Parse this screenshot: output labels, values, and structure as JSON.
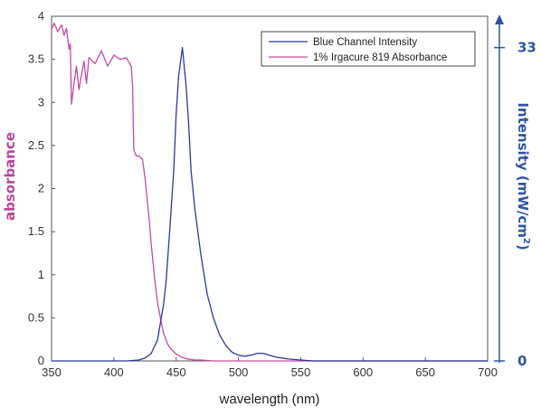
{
  "chart_data": {
    "type": "line",
    "xlabel": "wavelength (nm)",
    "ylabel_left": "absorbance",
    "ylabel_right_parts": [
      "Intensity (mW/cm",
      "2",
      ")"
    ],
    "xlim": [
      350,
      700
    ],
    "x_ticks": [
      "350",
      "400",
      "450",
      "500",
      "550",
      "600",
      "650",
      "700"
    ],
    "ylim_left": [
      0,
      4
    ],
    "y_ticks_left": [
      "0",
      "0.5",
      "1",
      "1.5",
      "2",
      "2.5",
      "3",
      "3.5",
      "4"
    ],
    "ylim_right": [
      0,
      36.3
    ],
    "y_ticks_right": [
      "0",
      "33"
    ],
    "grid": false,
    "legend_position": "top-right",
    "colors": {
      "intensity": "#2b3a9c",
      "absorbance": "#c647a6",
      "right_axis": "#2d55a5",
      "left_label": "#b8459c"
    },
    "series": [
      {
        "name": "Blue Channel Intensity",
        "axis": "right",
        "x": [
          350,
          400,
          410,
          420,
          425,
          430,
          435,
          440,
          442,
          445,
          448,
          450,
          452,
          455,
          458,
          460,
          462,
          465,
          468,
          470,
          475,
          480,
          485,
          490,
          495,
          500,
          505,
          510,
          515,
          520,
          525,
          530,
          540,
          550,
          560,
          600,
          650,
          700
        ],
        "y": [
          0,
          0,
          0,
          0.1,
          0.3,
          0.8,
          2.2,
          6,
          8.5,
          14,
          20,
          26,
          30,
          33,
          29,
          25,
          20,
          16,
          13,
          11,
          7,
          4.5,
          2.7,
          1.6,
          0.9,
          0.6,
          0.5,
          0.6,
          0.8,
          0.8,
          0.6,
          0.4,
          0.2,
          0.1,
          0,
          0,
          0,
          0
        ]
      },
      {
        "name": "1% Irgacure 819 Absorbance",
        "axis": "left",
        "x": [
          350,
          352,
          355,
          358,
          360,
          362,
          364,
          365,
          366,
          368,
          370,
          372,
          374,
          376,
          378,
          380,
          385,
          390,
          395,
          400,
          405,
          410,
          414,
          415,
          416,
          418,
          420,
          423,
          425,
          428,
          430,
          433,
          435,
          438,
          440,
          443,
          445,
          450,
          455,
          460,
          465,
          470,
          480,
          500,
          550,
          600,
          650,
          700
        ],
        "y": [
          3.85,
          3.92,
          3.82,
          3.9,
          3.78,
          3.86,
          3.62,
          3.68,
          2.98,
          3.22,
          3.42,
          3.15,
          3.32,
          3.48,
          3.22,
          3.52,
          3.45,
          3.6,
          3.42,
          3.55,
          3.5,
          3.52,
          3.42,
          3.2,
          2.45,
          2.38,
          2.38,
          2.34,
          2.12,
          1.7,
          1.35,
          0.92,
          0.68,
          0.45,
          0.32,
          0.2,
          0.15,
          0.08,
          0.04,
          0.02,
          0.01,
          0.01,
          0,
          0,
          0,
          0,
          0,
          0
        ]
      }
    ]
  }
}
